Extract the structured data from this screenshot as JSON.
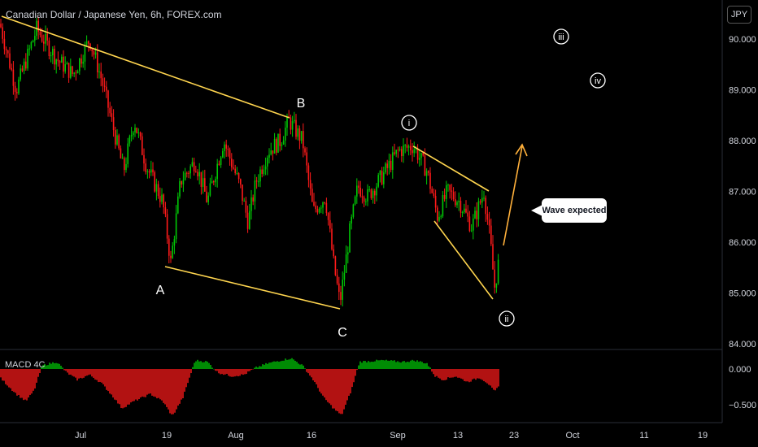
{
  "header": {
    "title": "Canadian Dollar / Japanese Yen, 6h, FOREX.com",
    "currency": "JPY"
  },
  "indicator": {
    "name": "MACD 4C"
  },
  "callout": {
    "text": "Wave expected"
  },
  "wave_labels": [
    "A",
    "B",
    "C"
  ],
  "circle_labels": [
    "i",
    "ii",
    "iii",
    "iv"
  ],
  "colors": {
    "up": "#26a69a",
    "bull": "#00c805",
    "bear": "#ff1a1a",
    "trendline": "#ffd54f",
    "arrow": "#ffb03b",
    "text": "#d1d4dc"
  },
  "chart_data": {
    "type": "candlestick",
    "title": "Canadian Dollar / Japanese Yen, 6h, FOREX.com",
    "x_ticks": [
      "Jul",
      "19",
      "Aug",
      "16",
      "Sep",
      "13",
      "23",
      "Oct",
      "11",
      "19"
    ],
    "y_ticks": [
      84.0,
      85.0,
      86.0,
      87.0,
      88.0,
      89.0,
      90.0
    ],
    "y_tick_labels": [
      "84.000",
      "85.000",
      "86.000",
      "87.000",
      "88.000",
      "89.000",
      "90.000"
    ],
    "ylim": [
      83.9,
      90.6
    ],
    "price_path": [
      [
        0,
        90.3
      ],
      [
        20,
        89.0
      ],
      [
        45,
        90.2
      ],
      [
        70,
        89.6
      ],
      [
        90,
        89.3
      ],
      [
        110,
        90.0
      ],
      [
        125,
        89.2
      ],
      [
        140,
        88.2
      ],
      [
        152,
        87.4
      ],
      [
        165,
        88.4
      ],
      [
        180,
        87.5
      ],
      [
        200,
        86.8
      ],
      [
        210,
        85.6
      ],
      [
        222,
        87.2
      ],
      [
        240,
        87.6
      ],
      [
        255,
        86.8
      ],
      [
        275,
        88.0
      ],
      [
        295,
        87.1
      ],
      [
        305,
        86.4
      ],
      [
        315,
        87.2
      ],
      [
        330,
        87.8
      ],
      [
        345,
        88.0
      ],
      [
        355,
        88.4
      ],
      [
        372,
        88.0
      ],
      [
        385,
        86.6
      ],
      [
        400,
        86.9
      ],
      [
        410,
        85.6
      ],
      [
        418,
        84.8
      ],
      [
        430,
        86.2
      ],
      [
        440,
        87.1
      ],
      [
        452,
        86.9
      ],
      [
        470,
        87.3
      ],
      [
        490,
        87.8
      ],
      [
        508,
        87.9
      ],
      [
        525,
        87.4
      ],
      [
        538,
        86.5
      ],
      [
        550,
        87.0
      ],
      [
        565,
        86.8
      ],
      [
        580,
        86.3
      ],
      [
        595,
        87.0
      ],
      [
        603,
        86.0
      ],
      [
        608,
        85.1
      ],
      [
        614,
        85.7
      ]
    ],
    "key_points": {
      "A": 85.5,
      "B": 88.4,
      "C": 84.7,
      "i": 87.9,
      "ii": 85.1
    },
    "projected": {
      "iii": 90.1,
      "iv": 89.2
    },
    "macd": {
      "y_ticks": [
        0.0,
        -0.5
      ],
      "y_tick_labels": [
        "0.000",
        "−0.500"
      ],
      "ylim": [
        -0.72,
        0.32
      ],
      "histogram": [
        [
          0,
          -0.12
        ],
        [
          20,
          -0.35
        ],
        [
          32,
          -0.45
        ],
        [
          42,
          -0.3
        ],
        [
          52,
          0.05
        ],
        [
          70,
          0.1
        ],
        [
          82,
          -0.05
        ],
        [
          95,
          -0.15
        ],
        [
          110,
          -0.08
        ],
        [
          125,
          -0.2
        ],
        [
          140,
          -0.4
        ],
        [
          150,
          -0.55
        ],
        [
          165,
          -0.45
        ],
        [
          185,
          -0.35
        ],
        [
          200,
          -0.45
        ],
        [
          212,
          -0.66
        ],
        [
          225,
          -0.4
        ],
        [
          240,
          0.12
        ],
        [
          255,
          0.1
        ],
        [
          268,
          -0.05
        ],
        [
          285,
          -0.1
        ],
        [
          300,
          -0.08
        ],
        [
          315,
          0.02
        ],
        [
          330,
          0.08
        ],
        [
          345,
          0.12
        ],
        [
          358,
          0.15
        ],
        [
          372,
          0.05
        ],
        [
          385,
          -0.15
        ],
        [
          398,
          -0.4
        ],
        [
          410,
          -0.55
        ],
        [
          420,
          -0.65
        ],
        [
          432,
          -0.3
        ],
        [
          442,
          0.1
        ],
        [
          470,
          0.12
        ],
        [
          495,
          0.1
        ],
        [
          510,
          0.12
        ],
        [
          525,
          0.08
        ],
        [
          535,
          -0.1
        ],
        [
          545,
          -0.15
        ],
        [
          560,
          -0.1
        ],
        [
          575,
          -0.18
        ],
        [
          590,
          -0.12
        ],
        [
          600,
          -0.2
        ],
        [
          608,
          -0.32
        ],
        [
          613,
          -0.25
        ]
      ]
    }
  }
}
